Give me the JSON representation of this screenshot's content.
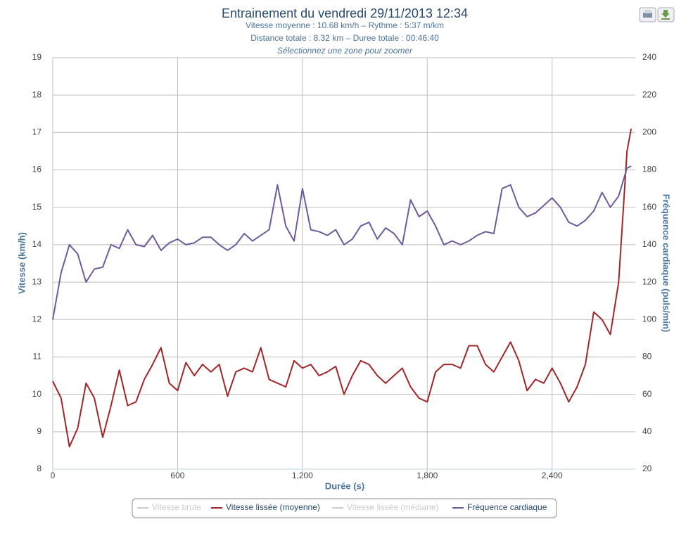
{
  "chart_data": {
    "type": "line",
    "title": "Entrainement du vendredi 29/11/2013 12:34",
    "subtitle": [
      "Vitesse moyenne : 10.68 km/h – Rythme : 5:37 m/km",
      "Distance totale : 8.32 km – Duree totale : 00:46:40",
      "Sélectionnez une zone pour zoomer"
    ],
    "x_label": "Durée (s)",
    "y_label": "Vitesse (km/h)",
    "y2_label": "Fréquence cardiaque (puls/min)",
    "xlim": [
      0,
      2800
    ],
    "xticks": [
      0,
      600,
      {
        "value": 1200,
        "label": "1,200"
      },
      {
        "value": 1800,
        "label": "1,800"
      },
      {
        "value": 2400,
        "label": "2,400"
      }
    ],
    "ylim": [
      8,
      19
    ],
    "yticks": [
      8,
      9,
      10,
      11,
      12,
      13,
      14,
      15,
      16,
      17,
      18,
      19
    ],
    "y2lim": [
      20,
      240
    ],
    "y2ticks": [
      20,
      40,
      60,
      80,
      100,
      120,
      140,
      160,
      180,
      200,
      220,
      240
    ],
    "grid": true,
    "x": [
      0,
      40,
      80,
      120,
      160,
      200,
      240,
      280,
      320,
      360,
      400,
      440,
      480,
      520,
      560,
      600,
      640,
      680,
      720,
      760,
      800,
      840,
      880,
      920,
      960,
      1000,
      1040,
      1080,
      1120,
      1160,
      1200,
      1240,
      1280,
      1320,
      1360,
      1400,
      1440,
      1480,
      1520,
      1560,
      1600,
      1640,
      1680,
      1720,
      1760,
      1800,
      1840,
      1880,
      1920,
      1960,
      2000,
      2040,
      2080,
      2120,
      2160,
      2200,
      2240,
      2280,
      2320,
      2360,
      2400,
      2440,
      2480,
      2520,
      2560,
      2600,
      2640,
      2680,
      2720,
      2760,
      2780
    ],
    "series": [
      {
        "name": "Vitesse brute",
        "color": "#cccccc",
        "visible": false
      },
      {
        "name": "Vitesse lissée (moyenne)",
        "color": "#a0262a",
        "visible": true,
        "values": [
          10.35,
          9.9,
          8.6,
          9.1,
          10.3,
          9.9,
          8.85,
          9.7,
          10.65,
          9.7,
          9.8,
          10.4,
          10.8,
          11.25,
          10.3,
          10.1,
          10.85,
          10.5,
          10.8,
          10.6,
          10.8,
          9.95,
          10.6,
          10.7,
          10.6,
          11.25,
          10.4,
          10.3,
          10.2,
          10.9,
          10.7,
          10.8,
          10.5,
          10.6,
          10.75,
          10.0,
          10.5,
          10.9,
          10.8,
          10.5,
          10.3,
          10.5,
          10.7,
          10.2,
          9.9,
          9.8,
          10.6,
          10.8,
          10.8,
          10.7,
          11.3,
          11.3,
          10.8,
          10.6,
          11.0,
          11.4,
          10.9,
          10.1,
          10.4,
          10.3,
          10.7,
          10.3,
          9.8,
          10.2,
          10.8,
          12.2,
          12.0,
          11.6,
          13.0,
          16.5,
          17.1
        ]
      },
      {
        "name": "Vitesse lissée (médiane)",
        "color": "#cccccc",
        "visible": false
      },
      {
        "name": "Fréquence cardiaque",
        "color": "#6e5b9b",
        "visible": true,
        "axis": "y2",
        "values": [
          100,
          125,
          140,
          135,
          120,
          127,
          128,
          140,
          138,
          148,
          140,
          139,
          145,
          137,
          141,
          143,
          140,
          141,
          144,
          144,
          140,
          137,
          140,
          146,
          142,
          145,
          148,
          172,
          150,
          142,
          170,
          148,
          147,
          145,
          148,
          140,
          143,
          150,
          152,
          143,
          149,
          146,
          140,
          164,
          155,
          158,
          150,
          140,
          142,
          140,
          142,
          145,
          147,
          146,
          170,
          172,
          160,
          155,
          157,
          161,
          165,
          160,
          152,
          150,
          153,
          158,
          168,
          160,
          166,
          181,
          182
        ]
      }
    ]
  }
}
